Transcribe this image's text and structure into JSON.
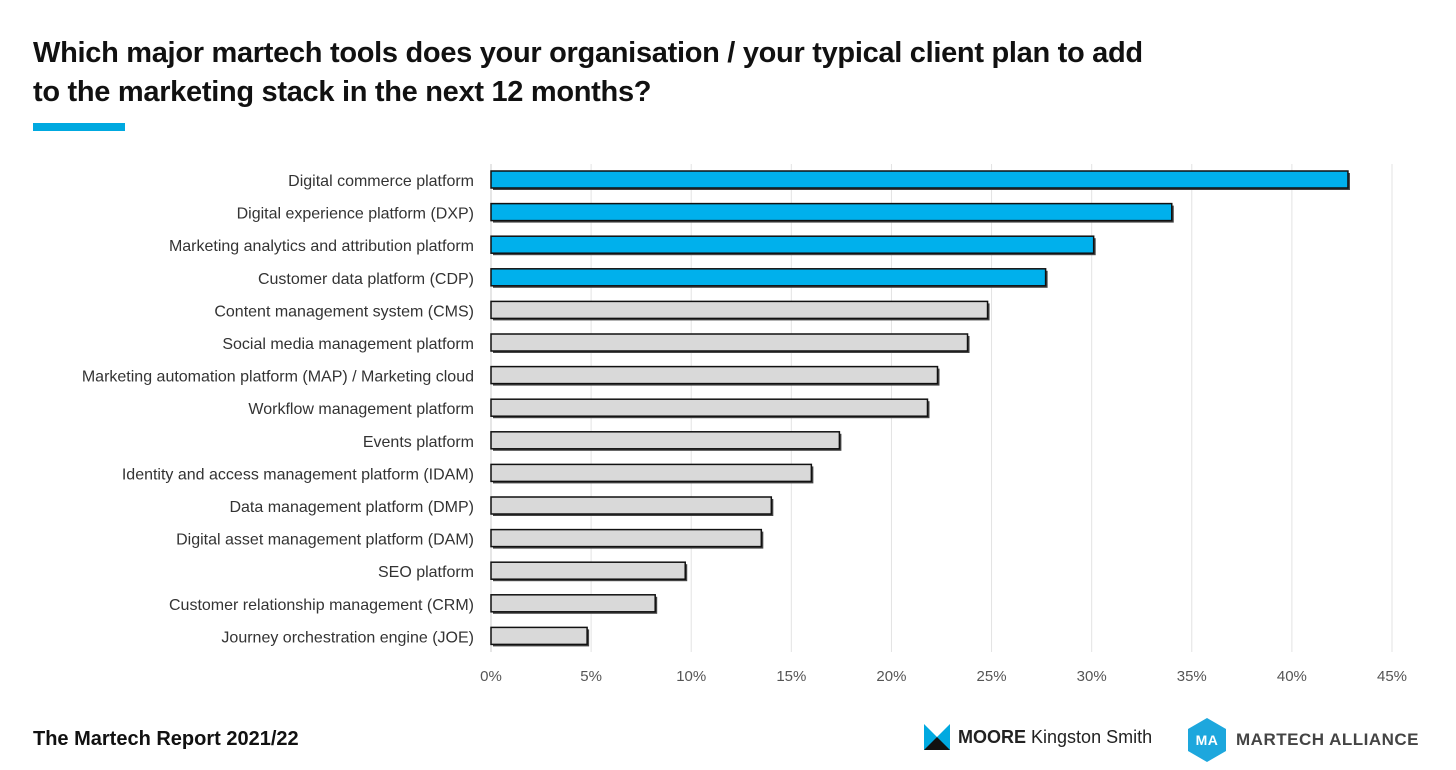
{
  "title_line1": "Which major martech tools does your organisation / your typical client plan to add",
  "title_line2": "to the marketing stack in the next 12 months?",
  "footer": "The Martech Report 2021/22",
  "logos": {
    "moore": "MOORE",
    "kingston": "Kingston Smith",
    "ma_mark": "MA",
    "martech_alliance": "MARTECH ALLIANCE"
  },
  "colors": {
    "highlight": "#00b0ec",
    "other": "#d9d9d9",
    "accent": "#00a9e0",
    "outline": "#111111",
    "grid": "#e3e3e3"
  },
  "chart_data": {
    "type": "bar",
    "orientation": "horizontal",
    "categories": [
      "Digital commerce platform",
      "Digital experience platform (DXP)",
      "Marketing analytics and attribution platform",
      "Customer data platform (CDP)",
      "Content management system (CMS)",
      "Social media management platform",
      "Marketing automation platform (MAP) / Marketing cloud",
      "Workflow management platform",
      "Events platform",
      "Identity and access management platform (IDAM)",
      "Data management platform (DMP)",
      "Digital asset management platform (DAM)",
      "SEO platform",
      "Customer relationship management (CRM)",
      "Journey orchestration engine (JOE)"
    ],
    "values": [
      42.8,
      34.0,
      30.1,
      27.7,
      24.8,
      23.8,
      22.3,
      21.8,
      17.4,
      16.0,
      14.0,
      13.5,
      9.7,
      8.2,
      4.8
    ],
    "highlighted": [
      true,
      true,
      true,
      true,
      false,
      false,
      false,
      false,
      false,
      false,
      false,
      false,
      false,
      false,
      false
    ],
    "xlim": [
      0,
      45
    ],
    "xticks": [
      "0%",
      "5%",
      "10%",
      "15%",
      "20%",
      "25%",
      "30%",
      "35%",
      "40%",
      "45%"
    ],
    "grid": true
  }
}
